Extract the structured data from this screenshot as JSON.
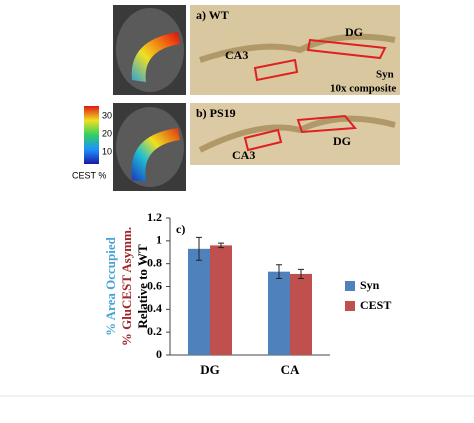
{
  "panels": [
    {
      "label": "a) WT",
      "regions": [
        "DG",
        "CA3"
      ],
      "stain": "Syn",
      "magnification": "10x composite"
    },
    {
      "label": "b) PS19",
      "regions": [
        "CA3",
        "DG"
      ]
    }
  ],
  "colorbar": {
    "label": "CEST %",
    "ticks": [
      10,
      20,
      30
    ]
  },
  "chart_data": {
    "type": "bar",
    "annotation": "c)",
    "ylabel_lines": [
      {
        "text": "% Area Occupied",
        "color": "#4aa3d6"
      },
      {
        "text": "% GluCEST Asymm.",
        "color": "#a0282a"
      },
      {
        "text": "Relative to WT",
        "color": "#000000"
      }
    ],
    "categories": [
      "DG",
      "CA"
    ],
    "series": [
      {
        "name": "Syn",
        "color": "#4f81bd",
        "values": [
          0.93,
          0.73
        ],
        "errors": [
          0.1,
          0.06
        ]
      },
      {
        "name": "CEST",
        "color": "#c0504d",
        "values": [
          0.96,
          0.71
        ],
        "errors": [
          0.02,
          0.04
        ]
      }
    ],
    "ylim": [
      0,
      1.2
    ],
    "yticks": [
      0,
      0.2,
      0.4,
      0.6,
      0.8,
      1,
      1.2
    ],
    "legend": "right"
  }
}
